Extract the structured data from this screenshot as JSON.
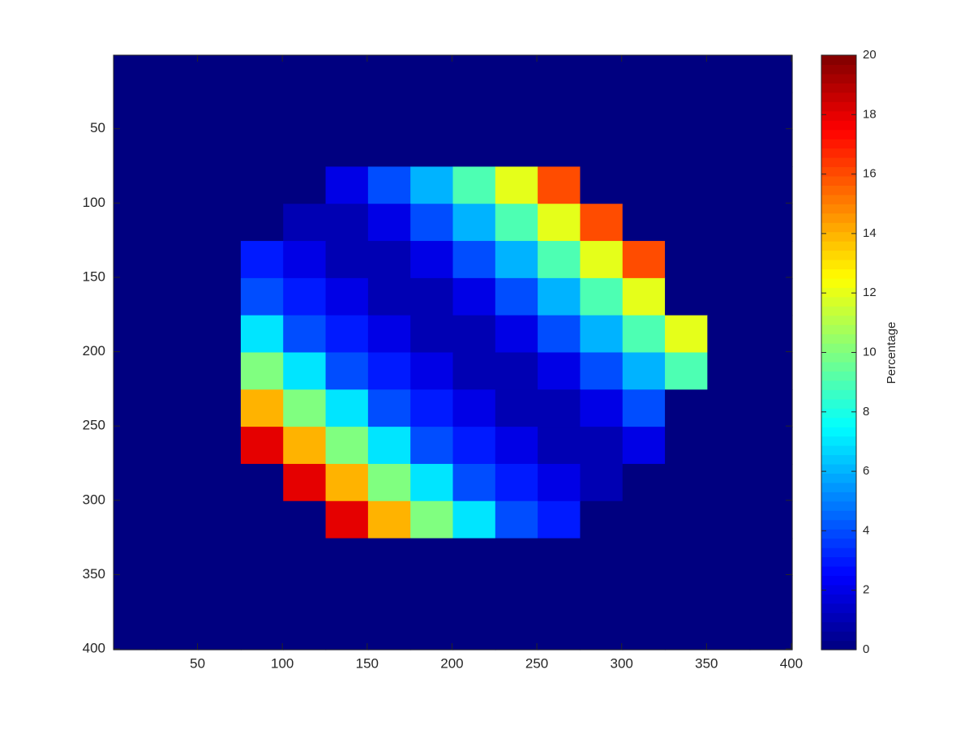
{
  "chart_data": {
    "type": "heatmap",
    "colormap": "jet",
    "xlim": [
      0.5,
      400.5
    ],
    "ylim": [
      0.5,
      400.5
    ],
    "y_reversed": true,
    "xticks": [
      50,
      100,
      150,
      200,
      250,
      300,
      350,
      400
    ],
    "yticks": [
      50,
      100,
      150,
      200,
      250,
      300,
      350,
      400
    ],
    "clim": [
      0,
      20
    ],
    "colorbar_ticks": [
      0,
      2,
      4,
      6,
      8,
      10,
      12,
      14,
      16,
      18,
      20
    ],
    "colorbar_label": "Percentage",
    "z": [
      [
        0,
        0,
        0,
        0,
        0,
        0,
        0,
        0,
        0,
        0,
        0,
        0,
        0,
        0,
        0,
        0
      ],
      [
        0,
        0,
        0,
        0,
        0,
        0,
        0,
        0,
        0,
        0,
        0,
        0,
        0,
        0,
        0,
        0
      ],
      [
        0,
        0,
        0,
        0,
        0,
        0,
        0,
        0,
        0,
        0,
        0,
        0,
        0,
        0,
        0,
        0
      ],
      [
        0,
        0,
        0,
        0,
        0,
        2,
        4,
        6,
        9,
        12,
        16,
        0,
        0,
        0,
        0,
        0
      ],
      [
        0,
        0,
        0,
        0,
        1,
        1,
        2,
        4,
        6,
        9,
        12,
        16,
        0,
        0,
        0,
        0
      ],
      [
        0,
        0,
        0,
        3,
        2,
        1,
        1,
        2,
        4,
        6,
        9,
        12,
        16,
        0,
        0,
        0
      ],
      [
        0,
        0,
        0,
        4,
        3,
        2,
        1,
        1,
        2,
        4,
        6,
        9,
        12,
        0,
        0,
        0
      ],
      [
        0,
        0,
        0,
        7,
        4,
        3,
        2,
        1,
        1,
        2,
        4,
        6,
        9,
        12,
        0,
        0
      ],
      [
        0,
        0,
        0,
        10,
        7,
        4,
        3,
        2,
        1,
        1,
        2,
        4,
        6,
        9,
        0,
        0
      ],
      [
        0,
        0,
        0,
        14,
        10,
        7,
        4,
        3,
        2,
        1,
        1,
        2,
        4,
        0,
        0,
        0
      ],
      [
        0,
        0,
        0,
        18,
        14,
        10,
        7,
        4,
        3,
        2,
        1,
        1,
        2,
        0,
        0,
        0
      ],
      [
        0,
        0,
        0,
        0,
        18,
        14,
        10,
        7,
        4,
        3,
        2,
        1,
        0,
        0,
        0,
        0
      ],
      [
        0,
        0,
        0,
        0,
        0,
        18,
        14,
        10,
        7,
        4,
        3,
        0,
        0,
        0,
        0,
        0
      ],
      [
        0,
        0,
        0,
        0,
        0,
        0,
        0,
        0,
        0,
        0,
        0,
        0,
        0,
        0,
        0,
        0
      ],
      [
        0,
        0,
        0,
        0,
        0,
        0,
        0,
        0,
        0,
        0,
        0,
        0,
        0,
        0,
        0,
        0
      ],
      [
        0,
        0,
        0,
        0,
        0,
        0,
        0,
        0,
        0,
        0,
        0,
        0,
        0,
        0,
        0,
        0
      ]
    ]
  }
}
